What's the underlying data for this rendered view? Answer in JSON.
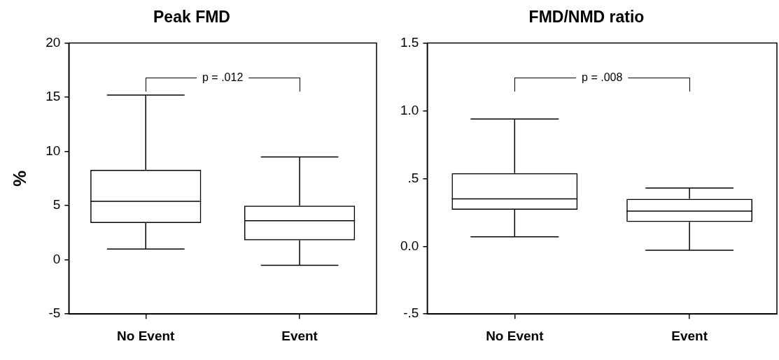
{
  "chart_data": [
    {
      "type": "box",
      "title": "Peak FMD",
      "ylabel": "%",
      "categories": [
        "No Event",
        "Event"
      ],
      "color": "#000000",
      "boxes": [
        {
          "low": 1.0,
          "q1": 3.4,
          "median": 5.4,
          "q3": 8.3,
          "high": 15.2
        },
        {
          "low": -0.5,
          "q1": 1.8,
          "median": 3.6,
          "q3": 5.0,
          "high": 9.5
        }
      ],
      "ylim": [
        -5,
        20
      ],
      "yticks": [
        -5,
        0,
        5,
        10,
        15,
        20
      ],
      "annotations": [
        "p = .012"
      ]
    },
    {
      "type": "box",
      "title": "FMD/NMD ratio",
      "categories": [
        "No Event",
        "Event"
      ],
      "color": "#000000",
      "boxes": [
        {
          "low": 0.07,
          "q1": 0.27,
          "median": 0.35,
          "q3": 0.54,
          "high": 0.94
        },
        {
          "low": -0.03,
          "q1": 0.18,
          "median": 0.26,
          "q3": 0.35,
          "high": 0.43
        }
      ],
      "ylim": [
        -0.5,
        1.5
      ],
      "yticks": [
        {
          "value": -0.5,
          "label": "-.5"
        },
        {
          "value": 0,
          "label": "0.0"
        },
        {
          "value": 0.5,
          "label": ".5"
        },
        {
          "value": 1,
          "label": "1.0"
        },
        {
          "value": 1.5,
          "label": "1.5"
        }
      ],
      "annotations": [
        "p = .008"
      ]
    }
  ]
}
